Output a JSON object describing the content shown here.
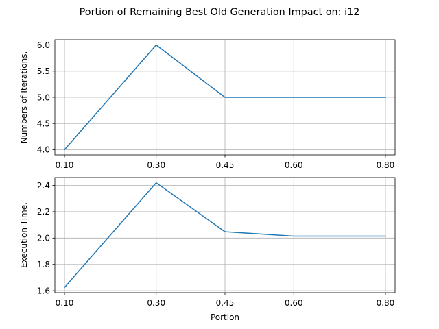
{
  "figure": {
    "title": "Portion of Remaining Best Old Generation Impact on: i12"
  },
  "chart_data": [
    {
      "type": "line",
      "title": "",
      "xlabel": "",
      "ylabel": "Numbers of Iterations.",
      "x": [
        0.1,
        0.3,
        0.45,
        0.6,
        0.8
      ],
      "x_tick_labels": [
        "0.10",
        "0.30",
        "0.45",
        "0.60",
        "0.80"
      ],
      "xlim": [
        0.079,
        0.821
      ],
      "ylim": [
        3.9,
        6.1
      ],
      "y_ticks": [
        4.0,
        4.5,
        5.0,
        5.5,
        6.0
      ],
      "y_tick_labels": [
        "4.0",
        "4.5",
        "5.0",
        "5.5",
        "6.0"
      ],
      "grid": true,
      "series": [
        {
          "values": [
            4.0,
            6.0,
            5.0,
            5.0,
            5.0
          ],
          "color": "#1f77b4"
        }
      ]
    },
    {
      "type": "line",
      "title": "",
      "xlabel": "Portion",
      "ylabel": "Execution Time.",
      "x": [
        0.1,
        0.3,
        0.45,
        0.6,
        0.8
      ],
      "x_tick_labels": [
        "0.10",
        "0.30",
        "0.45",
        "0.60",
        "0.80"
      ],
      "xlim": [
        0.079,
        0.821
      ],
      "ylim": [
        1.585,
        2.46
      ],
      "y_ticks": [
        1.6,
        1.8,
        2.0,
        2.2,
        2.4
      ],
      "y_tick_labels": [
        "1.6",
        "1.8",
        "2.0",
        "2.2",
        "2.4"
      ],
      "grid": true,
      "series": [
        {
          "values": [
            1.625,
            2.42,
            2.048,
            2.015,
            2.015
          ],
          "color": "#1f77b4"
        }
      ]
    }
  ]
}
